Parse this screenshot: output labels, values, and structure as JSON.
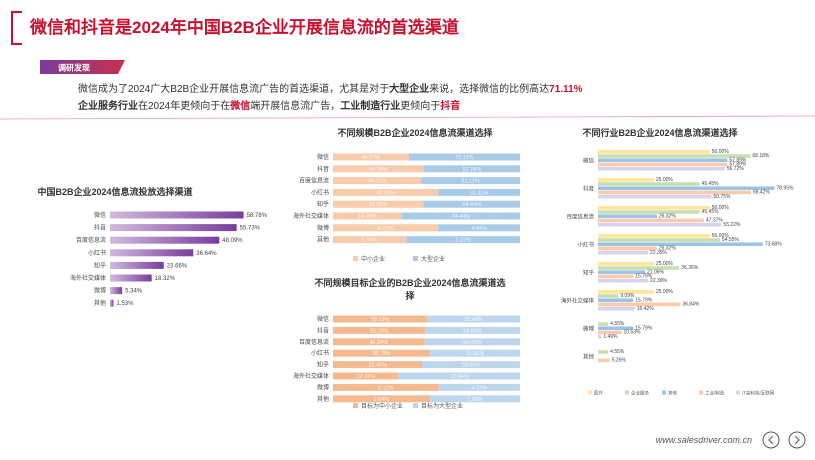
{
  "header": {
    "title": "微信和抖音是2024年中国B2B企业开展信息流的首选渠道",
    "tag": "调研发现"
  },
  "summary": [
    [
      "微信成为了2024广大B2B企业开展信息流广告的首选渠道，尤其是对于",
      "大型企业",
      "来说，选择微信的比例高达",
      "71.11%"
    ],
    [
      "企业服务行业",
      "在2024年更倾向于在",
      "微信",
      "端开展信息流广告，",
      "工业制造行业",
      "更倾向于",
      "抖音"
    ]
  ],
  "footer": {
    "url": "www.salesdriver.com.cn"
  },
  "chart_data": [
    {
      "type": "bar",
      "title": "中国B2B企业2024信息流投放选择渠道",
      "color": "#7a3b9f",
      "categories": [
        "微信",
        "抖音",
        "百度信息流",
        "小红书",
        "知乎",
        "海外社交媒体",
        "微博",
        "其他"
      ],
      "values": [
        58.78,
        55.73,
        48.09,
        36.64,
        23.66,
        18.32,
        5.34,
        1.53
      ],
      "value_labels": [
        "58.78%",
        "55.73%",
        "48.09%",
        "36.64%",
        "23.66%",
        "18.32%",
        "5.34%",
        "1.53%"
      ],
      "xlim": [
        0,
        66
      ]
    },
    {
      "type": "bar",
      "stacked": true,
      "title": "不同规模B2B企业2024信息流渠道选择",
      "categories": [
        "微信",
        "抖音",
        "百度信息流",
        "小红书",
        "知乎",
        "海外社交媒体",
        "微博",
        "其他"
      ],
      "series": [
        {
          "name": "中小企业",
          "color": "#f8cbad",
          "values": [
            48.57,
            54.29,
            45.71,
            40.0,
            22.86,
            14.29,
            5.71,
            1.43
          ],
          "value_labels": [
            "48.57%",
            "54.29%",
            "45.71%",
            "40.00%",
            "22.86%",
            "14.29%",
            "5.71%",
            "1.43%"
          ]
        },
        {
          "name": "大型企业",
          "color": "#a9cbe8",
          "values": [
            71.11,
            57.78,
            51.11,
            31.11,
            24.44,
            24.44,
            4.44,
            2.22
          ],
          "value_labels": [
            "71.11%",
            "57.78%",
            "51.11%",
            "31.11%",
            "24.44%",
            "24.44%",
            "4.44%",
            "2.22%"
          ]
        }
      ]
    },
    {
      "type": "bar",
      "stacked": true,
      "title": "不同规模目标企业的B2B企业2024信息流渠道选择",
      "categories": [
        "微信",
        "抖音",
        "百度信息流",
        "小红书",
        "知乎",
        "海外社交媒体",
        "微博",
        "其他"
      ],
      "series": [
        {
          "name": "目标为中小企业",
          "color": "#f4b98f",
          "values": [
            59.18,
            55.1,
            46.94,
            38.78,
            22.45,
            12.24,
            6.12,
            2.04
          ],
          "value_labels": [
            "59.18%",
            "55.10%",
            "46.94%",
            "38.78%",
            "22.45%",
            "12.24%",
            "6.12%",
            "2.04%"
          ]
        },
        {
          "name": "目标为大型企业",
          "color": "#bcd6ee",
          "values": [
            58.49,
            56.6,
            49.06,
            35.85,
            24.53,
            22.64,
            4.72,
            1.89
          ],
          "value_labels": [
            "58.49%",
            "56.60%",
            "49.06%",
            "35.85%",
            "24.53%",
            "22.64%",
            "4.72%",
            "1.89%"
          ]
        }
      ]
    },
    {
      "type": "bar",
      "title": "不同行业B2B企业2024信息流渠道选择",
      "xlim": [
        0,
        85
      ],
      "categories": [
        "微信",
        "抖音",
        "百度信息流",
        "小红书",
        "知乎",
        "海外社交媒体",
        "微博",
        "其他"
      ],
      "series": [
        {
          "name": "医疗",
          "color": "#ffe699",
          "values": [
            50.0,
            25.0,
            50.0,
            50.0,
            25.0,
            25.0,
            null,
            null
          ],
          "value_labels": [
            "50.00%",
            "25.00%",
            "50.00%",
            "50.00%",
            "25.00%",
            "25.00%",
            null,
            null
          ]
        },
        {
          "name": "企业服务",
          "color": "#c6e0b4",
          "values": [
            68.18,
            45.45,
            45.45,
            54.55,
            36.36,
            9.09,
            4.55,
            4.55
          ],
          "value_labels": [
            "68.18%",
            "45.45%",
            "45.45%",
            "54.55%",
            "36.36%",
            "9.09%",
            "4.55%",
            "4.55%"
          ]
        },
        {
          "name": "其他",
          "color": "#9dc3e6",
          "values": [
            57.89,
            78.95,
            26.32,
            73.68,
            21.05,
            15.79,
            15.79,
            null
          ],
          "value_labels": [
            "57.89%",
            "78.95%",
            "26.32%",
            "73.68%",
            "21.05%",
            "15.79%",
            "15.79%",
            null
          ]
        },
        {
          "name": "工业/制造",
          "color": "#f8cbad",
          "values": [
            57.89,
            68.42,
            47.37,
            26.32,
            15.79,
            36.84,
            10.53,
            5.26
          ],
          "value_labels": [
            "57.89%",
            "68.42%",
            "47.37%",
            "26.32%",
            "15.79%",
            "36.84%",
            "10.53%",
            "5.26%"
          ]
        },
        {
          "name": "IT高科技/互联网",
          "color": "#d9d2e9",
          "values": [
            56.72,
            50.75,
            55.22,
            22.39,
            22.39,
            16.42,
            1.49,
            null
          ],
          "value_labels": [
            "56.72%",
            "50.75%",
            "55.22%",
            "22.39%",
            "22.39%",
            "16.42%",
            "1.49%",
            null
          ]
        }
      ]
    }
  ]
}
